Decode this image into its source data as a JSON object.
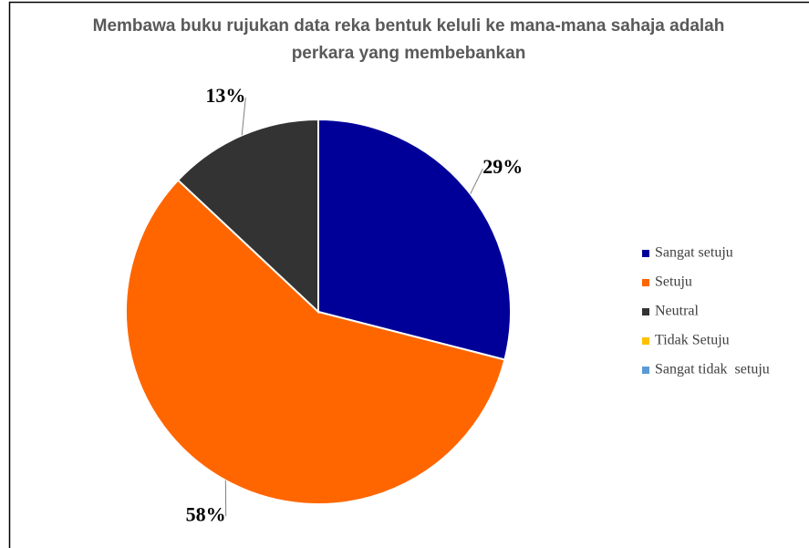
{
  "chart_data": {
    "type": "pie",
    "title": "Membawa buku rujukan data reka bentuk keluli ke mana-mana sahaja adalah perkara yang membebankan",
    "categories": [
      "Sangat setuju",
      "Setuju",
      "Neutral",
      "Tidak Setuju",
      "Sangat tidak  setuju"
    ],
    "values": [
      29,
      58,
      13,
      0,
      0
    ],
    "value_labels": [
      "29%",
      "58%",
      "13%",
      null,
      null
    ],
    "colors": [
      "#000099",
      "#ff6600",
      "#333333",
      "#ffc000",
      "#5b9bd5"
    ],
    "legend": "right"
  }
}
